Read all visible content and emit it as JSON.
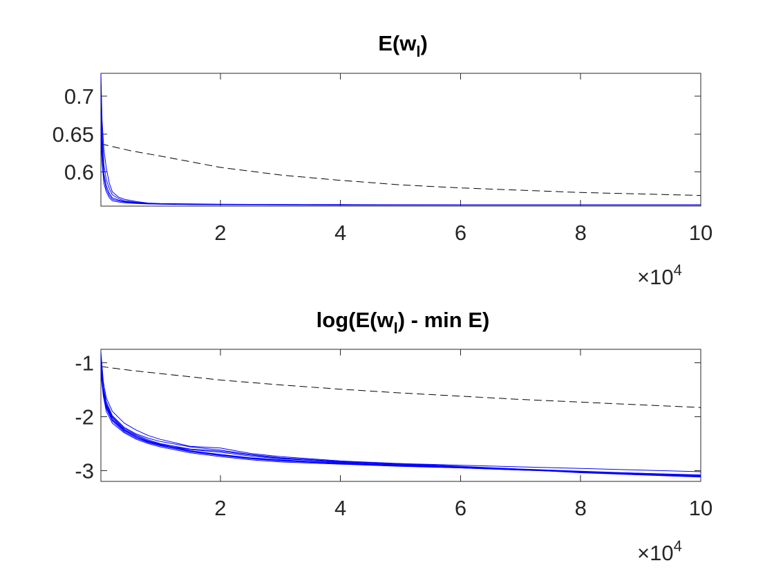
{
  "chart_data": [
    {
      "type": "line",
      "title_main": "E(w",
      "title_sub": "l",
      "title_tail": ")",
      "xlim": [
        100,
        100000
      ],
      "ylim": [
        0.555,
        0.73
      ],
      "xticks": [
        20000,
        40000,
        60000,
        80000,
        100000
      ],
      "xtick_labels": [
        "2",
        "4",
        "6",
        "8",
        "10"
      ],
      "yticks": [
        0.6,
        0.65,
        0.7
      ],
      "ytick_labels": [
        "0.6",
        "0.65",
        "0.7"
      ],
      "x_exponent_base": "×10",
      "x_exponent_power": "4",
      "reference_color": "#000000",
      "runs_color": "#0000ff",
      "series": [
        {
          "style": "dashed",
          "x": [
            100,
            5000,
            10000,
            20000,
            30000,
            40000,
            50000,
            60000,
            70000,
            80000,
            90000,
            100000
          ],
          "values": [
            0.637,
            0.628,
            0.621,
            0.606,
            0.596,
            0.589,
            0.583,
            0.579,
            0.576,
            0.573,
            0.571,
            0.569
          ]
        },
        {
          "style": "solid",
          "x": [
            100,
            300,
            600,
            1000,
            1500,
            2000,
            3000,
            4000,
            6000,
            8000,
            10000,
            15000,
            20000,
            30000,
            40000,
            60000,
            80000,
            100000
          ],
          "values": [
            0.73,
            0.668,
            0.63,
            0.605,
            0.585,
            0.574,
            0.567,
            0.564,
            0.561,
            0.559,
            0.5585,
            0.558,
            0.5575,
            0.557,
            0.557,
            0.5565,
            0.5565,
            0.5565
          ]
        },
        {
          "style": "solid",
          "x": [
            100,
            300,
            600,
            1000,
            1500,
            2000,
            3000,
            4000,
            6000,
            8000,
            10000,
            15000,
            20000,
            30000,
            40000,
            60000,
            80000,
            100000
          ],
          "values": [
            0.7,
            0.652,
            0.61,
            0.59,
            0.578,
            0.57,
            0.565,
            0.562,
            0.56,
            0.5585,
            0.558,
            0.5575,
            0.557,
            0.557,
            0.5565,
            0.5565,
            0.5565,
            0.5565
          ]
        },
        {
          "style": "solid",
          "x": [
            100,
            300,
            600,
            1000,
            1500,
            2000,
            3000,
            4000,
            6000,
            8000,
            10000,
            15000,
            20000,
            30000,
            40000,
            60000,
            80000,
            100000
          ],
          "values": [
            0.68,
            0.64,
            0.598,
            0.582,
            0.572,
            0.566,
            0.563,
            0.561,
            0.5595,
            0.5585,
            0.558,
            0.5575,
            0.557,
            0.557,
            0.5565,
            0.5565,
            0.5565,
            0.5565
          ]
        },
        {
          "style": "solid",
          "x": [
            100,
            300,
            600,
            1000,
            1500,
            2000,
            3000,
            4000,
            6000,
            8000,
            10000,
            15000,
            20000,
            30000,
            40000,
            60000,
            80000,
            100000
          ],
          "values": [
            0.66,
            0.625,
            0.592,
            0.578,
            0.569,
            0.564,
            0.562,
            0.5605,
            0.559,
            0.558,
            0.5578,
            0.5572,
            0.557,
            0.5568,
            0.5565,
            0.5565,
            0.5565,
            0.5565
          ]
        },
        {
          "style": "solid",
          "x": [
            100,
            300,
            600,
            1000,
            1500,
            2000,
            3000,
            4000,
            6000,
            8000,
            10000,
            15000,
            20000,
            30000,
            40000,
            60000,
            80000,
            100000
          ],
          "values": [
            0.645,
            0.612,
            0.585,
            0.574,
            0.566,
            0.562,
            0.5605,
            0.5595,
            0.5585,
            0.5578,
            0.5575,
            0.557,
            0.5568,
            0.5566,
            0.5565,
            0.5565,
            0.5565,
            0.5565
          ]
        }
      ]
    },
    {
      "type": "line",
      "title_main": "log(E(w",
      "title_sub": "l",
      "title_tail": ") - min E)",
      "xlim": [
        100,
        100000
      ],
      "ylim": [
        -3.2,
        -0.75
      ],
      "xticks": [
        20000,
        40000,
        60000,
        80000,
        100000
      ],
      "xtick_labels": [
        "2",
        "4",
        "6",
        "8",
        "10"
      ],
      "yticks": [
        -3,
        -2,
        -1
      ],
      "ytick_labels": [
        "-3",
        "-2",
        "-1"
      ],
      "x_exponent_base": "×10",
      "x_exponent_power": "4",
      "reference_color": "#000000",
      "runs_color": "#0000ff",
      "series": [
        {
          "style": "dashed",
          "x": [
            100,
            5000,
            10000,
            20000,
            30000,
            40000,
            50000,
            60000,
            70000,
            80000,
            90000,
            100000
          ],
          "values": [
            -1.07,
            -1.14,
            -1.2,
            -1.32,
            -1.41,
            -1.49,
            -1.56,
            -1.62,
            -1.68,
            -1.73,
            -1.78,
            -1.83
          ]
        },
        {
          "style": "solid",
          "x": [
            100,
            500,
            1000,
            2000,
            4000,
            6000,
            8000,
            10000,
            15000,
            20000,
            25000,
            30000,
            40000,
            50000,
            60000,
            70000,
            80000,
            90000,
            100000
          ],
          "values": [
            -0.8,
            -1.35,
            -1.65,
            -1.9,
            -2.12,
            -2.25,
            -2.35,
            -2.42,
            -2.55,
            -2.58,
            -2.68,
            -2.74,
            -2.82,
            -2.87,
            -2.92,
            -2.97,
            -3.02,
            -3.06,
            -3.1
          ]
        },
        {
          "style": "solid",
          "x": [
            100,
            500,
            1000,
            2000,
            4000,
            6000,
            8000,
            10000,
            15000,
            20000,
            25000,
            30000,
            40000,
            50000,
            60000,
            70000,
            80000,
            90000,
            100000
          ],
          "values": [
            -0.9,
            -1.45,
            -1.72,
            -1.98,
            -2.2,
            -2.32,
            -2.4,
            -2.46,
            -2.56,
            -2.62,
            -2.7,
            -2.76,
            -2.83,
            -2.88,
            -2.93,
            -2.98,
            -3.04,
            -3.08,
            -3.12
          ]
        },
        {
          "style": "solid",
          "x": [
            100,
            500,
            1000,
            2000,
            4000,
            6000,
            8000,
            10000,
            15000,
            20000,
            25000,
            30000,
            40000,
            50000,
            60000,
            70000,
            80000,
            90000,
            100000
          ],
          "values": [
            -1.0,
            -1.5,
            -1.78,
            -2.02,
            -2.24,
            -2.36,
            -2.45,
            -2.51,
            -2.63,
            -2.7,
            -2.76,
            -2.8,
            -2.86,
            -2.9,
            -2.94,
            -2.98,
            -3.02,
            -3.06,
            -3.09
          ]
        },
        {
          "style": "solid",
          "x": [
            100,
            500,
            1000,
            2000,
            4000,
            6000,
            8000,
            10000,
            15000,
            20000,
            25000,
            30000,
            40000,
            50000,
            60000,
            70000,
            80000,
            90000,
            100000
          ],
          "values": [
            -1.1,
            -1.58,
            -1.85,
            -2.08,
            -2.28,
            -2.4,
            -2.48,
            -2.54,
            -2.65,
            -2.72,
            -2.78,
            -2.82,
            -2.87,
            -2.91,
            -2.95,
            -2.99,
            -3.03,
            -3.07,
            -3.11
          ]
        },
        {
          "style": "solid",
          "x": [
            100,
            500,
            1000,
            2000,
            4000,
            6000,
            8000,
            10000,
            15000,
            20000,
            25000,
            30000,
            40000,
            50000,
            60000,
            70000,
            80000,
            90000,
            100000
          ],
          "values": [
            -1.2,
            -1.62,
            -1.9,
            -2.12,
            -2.3,
            -2.42,
            -2.5,
            -2.56,
            -2.67,
            -2.74,
            -2.8,
            -2.84,
            -2.88,
            -2.92,
            -2.95,
            -2.99,
            -3.02,
            -3.05,
            -3.08
          ]
        },
        {
          "style": "solid",
          "x": [
            100,
            500,
            1000,
            2000,
            4000,
            6000,
            8000,
            10000,
            15000,
            20000,
            25000,
            30000,
            40000,
            50000,
            60000,
            70000,
            80000,
            90000,
            100000
          ],
          "values": [
            -1.0,
            -1.52,
            -1.8,
            -2.05,
            -2.25,
            -2.38,
            -2.46,
            -2.52,
            -2.61,
            -2.66,
            -2.73,
            -2.78,
            -2.84,
            -2.87,
            -2.9,
            -2.93,
            -2.96,
            -2.99,
            -3.02
          ]
        },
        {
          "style": "solid",
          "x": [
            100,
            500,
            1000,
            2000,
            4000,
            6000,
            8000,
            10000,
            15000,
            20000,
            25000,
            30000,
            40000,
            50000,
            60000,
            70000,
            80000,
            90000,
            100000
          ],
          "values": [
            -0.95,
            -1.48,
            -1.76,
            -2.0,
            -2.22,
            -2.34,
            -2.43,
            -2.5,
            -2.6,
            -2.64,
            -2.71,
            -2.77,
            -2.85,
            -2.89,
            -2.93,
            -2.97,
            -3.01,
            -3.05,
            -3.09
          ]
        },
        {
          "style": "solid",
          "x": [
            100,
            500,
            1000,
            2000,
            4000,
            6000,
            8000,
            10000,
            15000,
            20000,
            25000,
            30000,
            40000,
            50000,
            60000,
            70000,
            80000,
            90000,
            100000
          ],
          "values": [
            -1.05,
            -1.55,
            -1.82,
            -2.06,
            -2.26,
            -2.38,
            -2.47,
            -2.53,
            -2.64,
            -2.71,
            -2.77,
            -2.81,
            -2.87,
            -2.9,
            -2.94,
            -2.98,
            -3.03,
            -3.07,
            -3.1
          ]
        }
      ]
    }
  ]
}
